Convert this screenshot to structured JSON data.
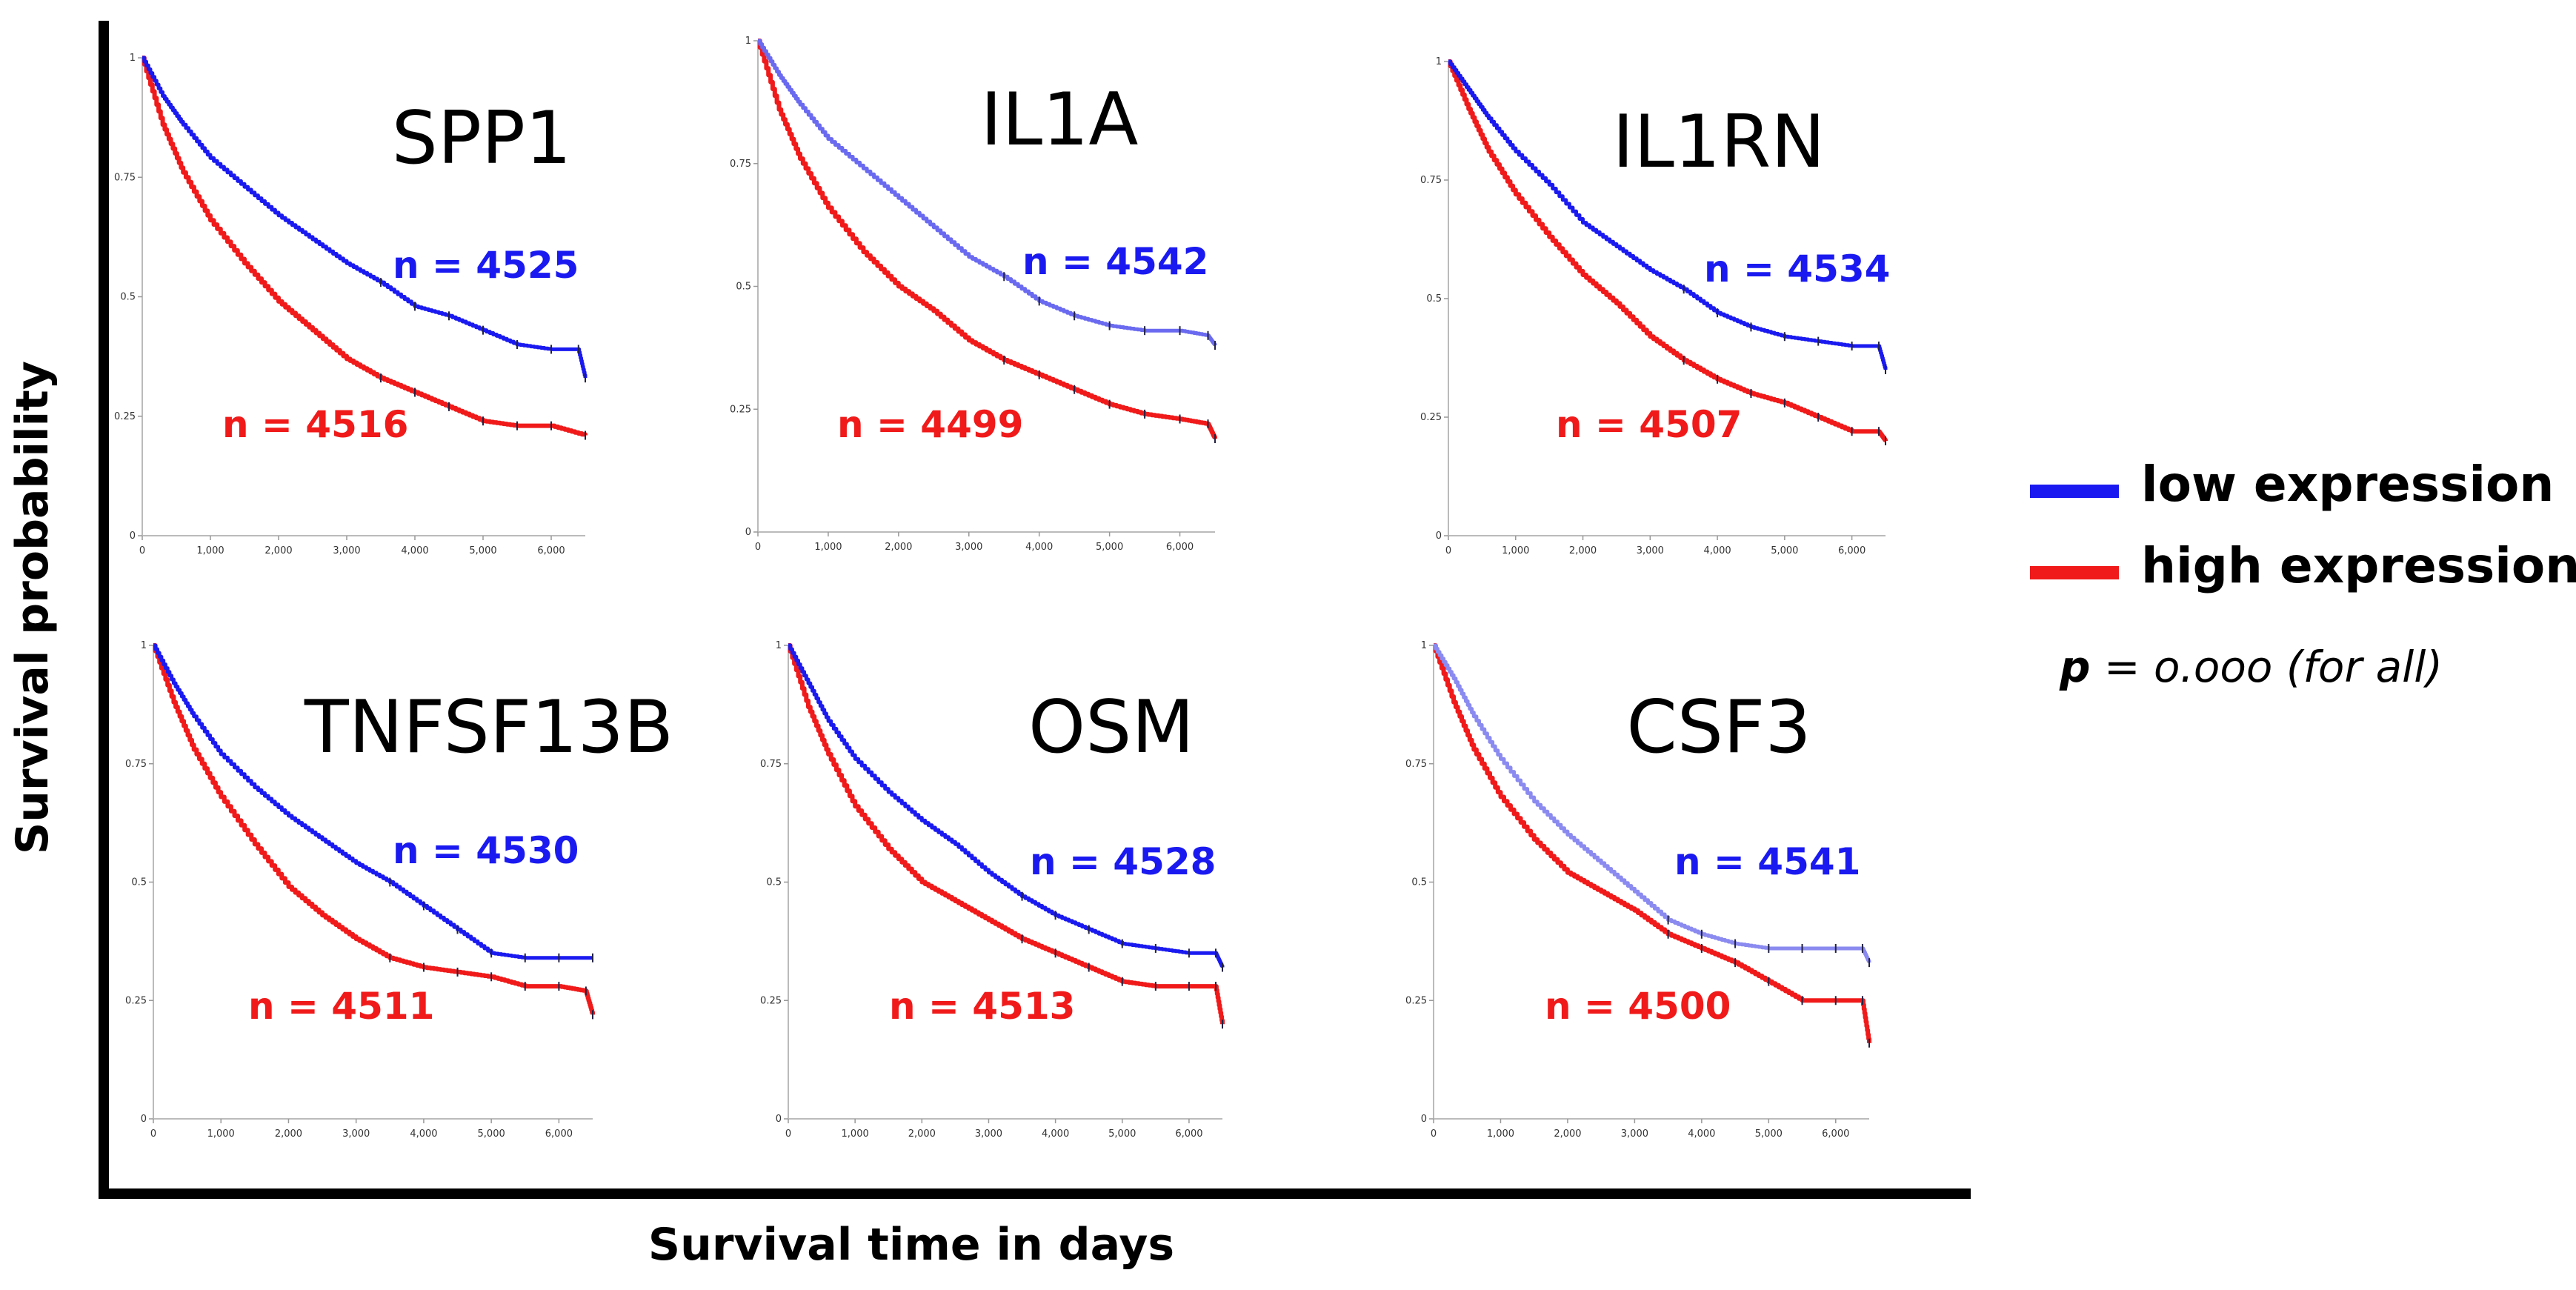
{
  "figure": {
    "ylabel": "Survival probability",
    "xlabel": "Survival time in days",
    "legend": {
      "items": [
        {
          "label": "low expression",
          "color": "#1a1af0"
        },
        {
          "label": "high expression",
          "color": "#f01a1a"
        }
      ],
      "p_bold": "p",
      "p_rest": " = o.ooo (for all)"
    }
  },
  "chart_data": [
    {
      "type": "line",
      "title": "SPP1",
      "xlabel": "",
      "ylabel": "",
      "xlim": [
        0,
        6500
      ],
      "ylim": [
        0,
        1
      ],
      "xticks": [
        0,
        1000,
        2000,
        3000,
        4000,
        5000,
        6000
      ],
      "xtick_labels": [
        "0",
        "1,000",
        "2,000",
        "3,000",
        "4,000",
        "5,000",
        "6,000"
      ],
      "yticks": [
        0,
        0.25,
        0.5,
        0.75,
        1
      ],
      "ytick_labels": [
        "0",
        "0.25",
        "0.5",
        "0.75",
        "1"
      ],
      "series": [
        {
          "name": "low expression",
          "n_label": "n = 4525",
          "color": "#1a1af0",
          "x": [
            0,
            300,
            600,
            1000,
            1500,
            2000,
            2500,
            3000,
            3500,
            4000,
            4500,
            5000,
            5500,
            6000,
            6400,
            6500
          ],
          "y": [
            1,
            0.92,
            0.86,
            0.79,
            0.73,
            0.67,
            0.62,
            0.57,
            0.53,
            0.48,
            0.46,
            0.43,
            0.4,
            0.39,
            0.39,
            0.33
          ]
        },
        {
          "name": "high expression",
          "n_label": "n = 4516",
          "color": "#f01a1a",
          "x": [
            0,
            300,
            600,
            1000,
            1500,
            2000,
            2500,
            3000,
            3500,
            4000,
            4500,
            5000,
            5500,
            6000,
            6500
          ],
          "y": [
            1,
            0.86,
            0.76,
            0.66,
            0.57,
            0.49,
            0.43,
            0.37,
            0.33,
            0.3,
            0.27,
            0.24,
            0.23,
            0.23,
            0.21
          ]
        }
      ]
    },
    {
      "type": "line",
      "title": "IL1A",
      "xlabel": "",
      "ylabel": "",
      "xlim": [
        0,
        6500
      ],
      "ylim": [
        0,
        1
      ],
      "xticks": [
        0,
        1000,
        2000,
        3000,
        4000,
        5000,
        6000
      ],
      "xtick_labels": [
        "0",
        "1,000",
        "2,000",
        "3,000",
        "4,000",
        "5,000",
        "6,000"
      ],
      "yticks": [
        0,
        0.25,
        0.5,
        0.75,
        1
      ],
      "ytick_labels": [
        "0",
        "0.25",
        "0.5",
        "0.75",
        "1"
      ],
      "series": [
        {
          "name": "low expression",
          "n_label": "n = 4542",
          "color": "#6a6af0",
          "x": [
            0,
            300,
            600,
            1000,
            1500,
            2000,
            2500,
            3000,
            3500,
            4000,
            4500,
            5000,
            5500,
            6000,
            6400,
            6500
          ],
          "y": [
            1,
            0.93,
            0.87,
            0.8,
            0.74,
            0.68,
            0.62,
            0.56,
            0.52,
            0.47,
            0.44,
            0.42,
            0.41,
            0.41,
            0.4,
            0.38
          ]
        },
        {
          "name": "high expression",
          "n_label": "n = 4499",
          "color": "#f01a1a",
          "x": [
            0,
            300,
            600,
            1000,
            1500,
            2000,
            2500,
            3000,
            3500,
            4000,
            4500,
            5000,
            5500,
            6000,
            6400,
            6500
          ],
          "y": [
            1,
            0.86,
            0.76,
            0.66,
            0.57,
            0.5,
            0.45,
            0.39,
            0.35,
            0.32,
            0.29,
            0.26,
            0.24,
            0.23,
            0.22,
            0.19
          ]
        }
      ]
    },
    {
      "type": "line",
      "title": "IL1RN",
      "xlabel": "",
      "ylabel": "",
      "xlim": [
        0,
        6500
      ],
      "ylim": [
        0,
        1
      ],
      "xticks": [
        0,
        1000,
        2000,
        3000,
        4000,
        5000,
        6000
      ],
      "xtick_labels": [
        "0",
        "1,000",
        "2,000",
        "3,000",
        "4,000",
        "5,000",
        "6,000"
      ],
      "yticks": [
        0,
        0.25,
        0.5,
        0.75,
        1
      ],
      "ytick_labels": [
        "0",
        "0.25",
        "0.5",
        "0.75",
        "1"
      ],
      "series": [
        {
          "name": "low expression",
          "n_label": "n = 4534",
          "color": "#1a1af0",
          "x": [
            0,
            300,
            600,
            1000,
            1500,
            2000,
            2500,
            3000,
            3500,
            4000,
            4500,
            5000,
            5500,
            6000,
            6400,
            6500
          ],
          "y": [
            1,
            0.94,
            0.88,
            0.81,
            0.74,
            0.66,
            0.61,
            0.56,
            0.52,
            0.47,
            0.44,
            0.42,
            0.41,
            0.4,
            0.4,
            0.35
          ]
        },
        {
          "name": "high expression",
          "n_label": "n = 4507",
          "color": "#f01a1a",
          "x": [
            0,
            300,
            600,
            1000,
            1500,
            2000,
            2500,
            3000,
            3500,
            4000,
            4500,
            5000,
            5500,
            6000,
            6400,
            6500
          ],
          "y": [
            1,
            0.9,
            0.81,
            0.72,
            0.63,
            0.55,
            0.49,
            0.42,
            0.37,
            0.33,
            0.3,
            0.28,
            0.25,
            0.22,
            0.22,
            0.2
          ]
        }
      ]
    },
    {
      "type": "line",
      "title": "TNFSF13B",
      "xlabel": "",
      "ylabel": "",
      "xlim": [
        0,
        6500
      ],
      "ylim": [
        0,
        1
      ],
      "xticks": [
        0,
        1000,
        2000,
        3000,
        4000,
        5000,
        6000
      ],
      "xtick_labels": [
        "0",
        "1,000",
        "2,000",
        "3,000",
        "4,000",
        "5,000",
        "6,000"
      ],
      "yticks": [
        0,
        0.25,
        0.5,
        0.75,
        1
      ],
      "ytick_labels": [
        "0",
        "0.25",
        "0.5",
        "0.75",
        "1"
      ],
      "series": [
        {
          "name": "low expression",
          "n_label": "n = 4530",
          "color": "#1a1af0",
          "x": [
            0,
            300,
            600,
            1000,
            1500,
            2000,
            2500,
            3000,
            3500,
            4000,
            4500,
            5000,
            5500,
            6000,
            6500
          ],
          "y": [
            1,
            0.92,
            0.85,
            0.77,
            0.7,
            0.64,
            0.59,
            0.54,
            0.5,
            0.45,
            0.4,
            0.35,
            0.34,
            0.34,
            0.34
          ]
        },
        {
          "name": "high expression",
          "n_label": "n = 4511",
          "color": "#f01a1a",
          "x": [
            0,
            300,
            600,
            1000,
            1500,
            2000,
            2500,
            3000,
            3500,
            4000,
            4500,
            5000,
            5500,
            6000,
            6400,
            6500
          ],
          "y": [
            1,
            0.88,
            0.78,
            0.68,
            0.58,
            0.49,
            0.43,
            0.38,
            0.34,
            0.32,
            0.31,
            0.3,
            0.28,
            0.28,
            0.27,
            0.22
          ]
        }
      ]
    },
    {
      "type": "line",
      "title": "OSM",
      "xlabel": "",
      "ylabel": "",
      "xlim": [
        0,
        6500
      ],
      "ylim": [
        0,
        1
      ],
      "xticks": [
        0,
        1000,
        2000,
        3000,
        4000,
        5000,
        6000
      ],
      "xtick_labels": [
        "0",
        "1,000",
        "2,000",
        "3,000",
        "4,000",
        "5,000",
        "6,000"
      ],
      "yticks": [
        0,
        0.25,
        0.5,
        0.75,
        1
      ],
      "ytick_labels": [
        "0",
        "0.25",
        "0.5",
        "0.75",
        "1"
      ],
      "series": [
        {
          "name": "low expression",
          "n_label": "n = 4528",
          "color": "#1a1af0",
          "x": [
            0,
            300,
            600,
            1000,
            1500,
            2000,
            2500,
            3000,
            3500,
            4000,
            4500,
            5000,
            5500,
            6000,
            6400,
            6500
          ],
          "y": [
            1,
            0.92,
            0.84,
            0.76,
            0.69,
            0.63,
            0.58,
            0.52,
            0.47,
            0.43,
            0.4,
            0.37,
            0.36,
            0.35,
            0.35,
            0.32
          ]
        },
        {
          "name": "high expression",
          "n_label": "n = 4513",
          "color": "#f01a1a",
          "x": [
            0,
            300,
            600,
            1000,
            1500,
            2000,
            2500,
            3000,
            3500,
            4000,
            4500,
            5000,
            5500,
            6000,
            6400,
            6500
          ],
          "y": [
            1,
            0.87,
            0.77,
            0.66,
            0.57,
            0.5,
            0.46,
            0.42,
            0.38,
            0.35,
            0.32,
            0.29,
            0.28,
            0.28,
            0.28,
            0.2
          ]
        }
      ]
    },
    {
      "type": "line",
      "title": "CSF3",
      "xlabel": "",
      "ylabel": "",
      "xlim": [
        0,
        6500
      ],
      "ylim": [
        0,
        1
      ],
      "xticks": [
        0,
        1000,
        2000,
        3000,
        4000,
        5000,
        6000
      ],
      "xtick_labels": [
        "0",
        "1,000",
        "2,000",
        "3,000",
        "4,000",
        "5,000",
        "6,000"
      ],
      "yticks": [
        0,
        0.25,
        0.5,
        0.75,
        1
      ],
      "ytick_labels": [
        "0",
        "0.25",
        "0.5",
        "0.75",
        "1"
      ],
      "series": [
        {
          "name": "low expression",
          "n_label": "n = 4541",
          "color": "#8a8af0",
          "x": [
            0,
            300,
            600,
            1000,
            1500,
            2000,
            2500,
            3000,
            3500,
            4000,
            4500,
            5000,
            5500,
            6000,
            6400,
            6500
          ],
          "y": [
            1,
            0.93,
            0.85,
            0.76,
            0.67,
            0.6,
            0.54,
            0.48,
            0.42,
            0.39,
            0.37,
            0.36,
            0.36,
            0.36,
            0.36,
            0.33
          ]
        },
        {
          "name": "high expression",
          "n_label": "n = 4500",
          "color": "#f01a1a",
          "x": [
            0,
            300,
            600,
            1000,
            1500,
            2000,
            2500,
            3000,
            3500,
            4000,
            4500,
            5000,
            5500,
            6000,
            6400,
            6500
          ],
          "y": [
            1,
            0.88,
            0.78,
            0.68,
            0.59,
            0.52,
            0.48,
            0.44,
            0.39,
            0.36,
            0.33,
            0.29,
            0.25,
            0.25,
            0.25,
            0.16
          ]
        }
      ]
    }
  ]
}
